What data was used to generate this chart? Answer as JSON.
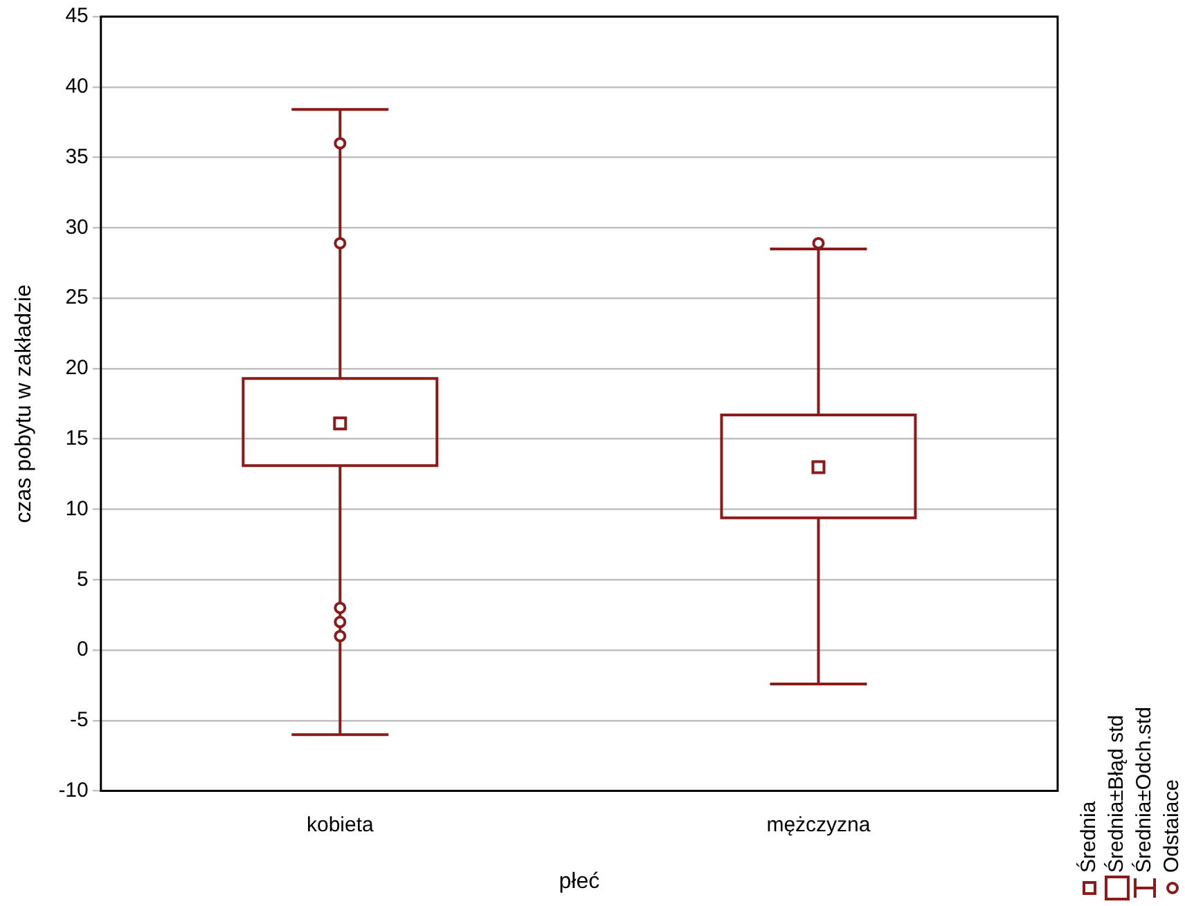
{
  "chart_data": {
    "type": "box",
    "xlabel": "płeć",
    "ylabel": "czas pobytu w zakładzie",
    "categories": [
      "kobieta",
      "mężczyzna"
    ],
    "series": [
      {
        "color": "#8b1a1a",
        "boxes": [
          {
            "low": -6.0,
            "q1": 13.1,
            "median": 16.1,
            "q3": 19.3,
            "high": 38.4,
            "outliers": [
              36.0,
              28.9,
              3.0,
              2.0,
              1.0
            ]
          },
          {
            "low": -2.4,
            "q1": 9.4,
            "median": 13.0,
            "q3": 16.7,
            "high": 28.5,
            "outliers": [
              28.9
            ]
          }
        ]
      }
    ],
    "ylim": [
      -10,
      45
    ],
    "yticks": [
      -10,
      -5,
      0,
      5,
      10,
      15,
      20,
      25,
      30,
      35,
      40,
      45
    ],
    "grid": "y",
    "annotations": [
      "Średnia",
      "Średnia±Błąd std",
      "Średnia±Odch.std",
      "Odstaiace"
    ]
  }
}
